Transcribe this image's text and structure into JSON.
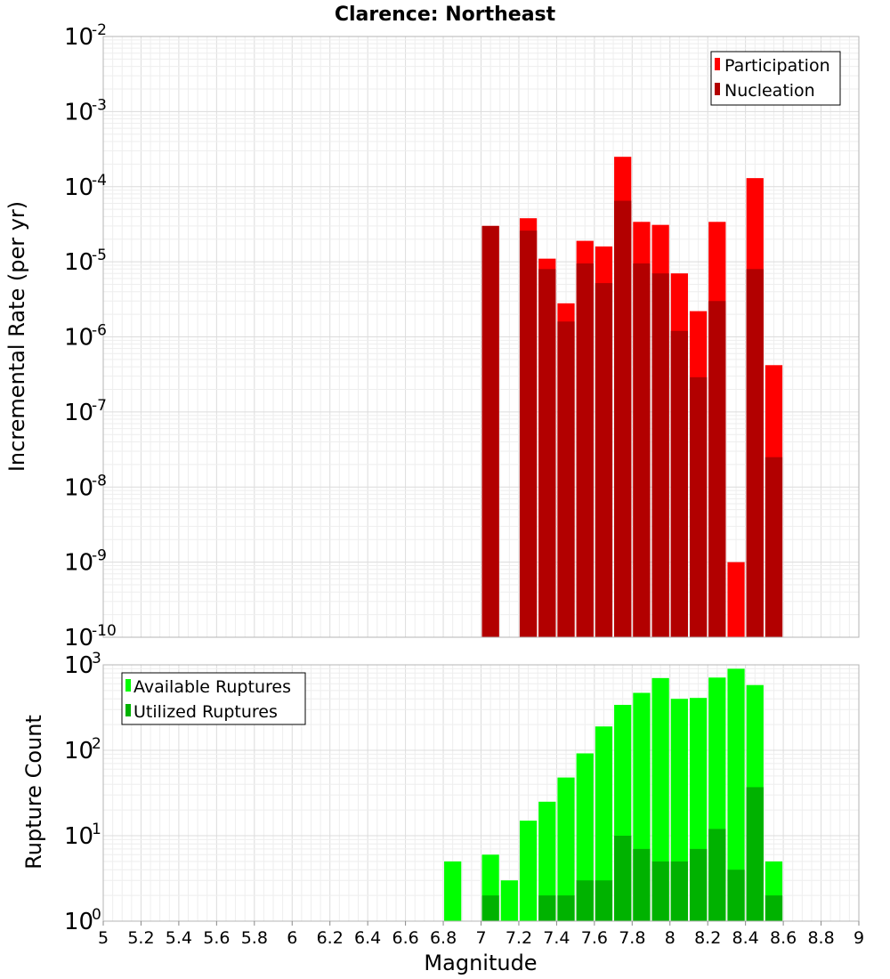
{
  "chart_data": [
    {
      "type": "bar",
      "title": "Clarence: Northeast",
      "xlabel": "Magnitude",
      "ylabel": "Incremental Rate (per yr)",
      "yscale": "log",
      "ylim_exp": [
        -10,
        -2
      ],
      "xlim": [
        5,
        9
      ],
      "bar_width": 0.1,
      "grid": true,
      "legend_placement": "top-right",
      "series": [
        {
          "name": "Participation",
          "color": "#ff0000",
          "points": [
            {
              "x": 7.05,
              "y": 3e-05
            },
            {
              "x": 7.25,
              "y": 3.8e-05
            },
            {
              "x": 7.35,
              "y": 1.1e-05
            },
            {
              "x": 7.45,
              "y": 2.8e-06
            },
            {
              "x": 7.55,
              "y": 1.9e-05
            },
            {
              "x": 7.65,
              "y": 1.6e-05
            },
            {
              "x": 7.75,
              "y": 0.00025
            },
            {
              "x": 7.85,
              "y": 3.4e-05
            },
            {
              "x": 7.95,
              "y": 3.1e-05
            },
            {
              "x": 8.05,
              "y": 7e-06
            },
            {
              "x": 8.15,
              "y": 2.2e-06
            },
            {
              "x": 8.25,
              "y": 3.4e-05
            },
            {
              "x": 8.35,
              "y": 1e-09
            },
            {
              "x": 8.45,
              "y": 0.00013
            },
            {
              "x": 8.55,
              "y": 4.2e-07
            }
          ]
        },
        {
          "name": "Nucleation",
          "color": "#b20000",
          "points": [
            {
              "x": 7.05,
              "y": 3e-05
            },
            {
              "x": 7.25,
              "y": 2.6e-05
            },
            {
              "x": 7.35,
              "y": 8e-06
            },
            {
              "x": 7.45,
              "y": 1.6e-06
            },
            {
              "x": 7.55,
              "y": 9.5e-06
            },
            {
              "x": 7.65,
              "y": 5.2e-06
            },
            {
              "x": 7.75,
              "y": 6.5e-05
            },
            {
              "x": 7.85,
              "y": 9.5e-06
            },
            {
              "x": 7.95,
              "y": 7e-06
            },
            {
              "x": 8.05,
              "y": 1.2e-06
            },
            {
              "x": 8.15,
              "y": 2.9e-07
            },
            {
              "x": 8.25,
              "y": 3e-06
            },
            {
              "x": 8.45,
              "y": 8e-06
            },
            {
              "x": 8.55,
              "y": 2.5e-08
            }
          ]
        }
      ]
    },
    {
      "type": "bar",
      "xlabel": "Magnitude",
      "ylabel": "Rupture Count",
      "yscale": "log",
      "ylim_exp": [
        0,
        3
      ],
      "xlim": [
        5,
        9
      ],
      "x_ticks": [
        "5",
        "5.2",
        "5.4",
        "5.6",
        "5.8",
        "6",
        "6.2",
        "6.4",
        "6.6",
        "6.8",
        "7",
        "7.2",
        "7.4",
        "7.6",
        "7.8",
        "8",
        "8.2",
        "8.4",
        "8.6",
        "8.8",
        "9"
      ],
      "bar_width": 0.1,
      "grid": true,
      "legend_placement": "top-left",
      "series": [
        {
          "name": "Available Ruptures",
          "color": "#00ff00",
          "points": [
            {
              "x": 6.85,
              "y": 5
            },
            {
              "x": 7.05,
              "y": 6
            },
            {
              "x": 7.15,
              "y": 3
            },
            {
              "x": 7.25,
              "y": 15
            },
            {
              "x": 7.35,
              "y": 25
            },
            {
              "x": 7.45,
              "y": 48
            },
            {
              "x": 7.55,
              "y": 92
            },
            {
              "x": 7.65,
              "y": 190
            },
            {
              "x": 7.75,
              "y": 340
            },
            {
              "x": 7.85,
              "y": 470
            },
            {
              "x": 7.95,
              "y": 700
            },
            {
              "x": 8.05,
              "y": 400
            },
            {
              "x": 8.15,
              "y": 410
            },
            {
              "x": 8.25,
              "y": 710
            },
            {
              "x": 8.35,
              "y": 900
            },
            {
              "x": 8.45,
              "y": 580
            },
            {
              "x": 8.55,
              "y": 5
            }
          ]
        },
        {
          "name": "Utilized Ruptures",
          "color": "#00b200",
          "points": [
            {
              "x": 7.05,
              "y": 2
            },
            {
              "x": 7.25,
              "y": 1
            },
            {
              "x": 7.35,
              "y": 2
            },
            {
              "x": 7.45,
              "y": 2
            },
            {
              "x": 7.55,
              "y": 3
            },
            {
              "x": 7.65,
              "y": 3
            },
            {
              "x": 7.75,
              "y": 10
            },
            {
              "x": 7.85,
              "y": 7
            },
            {
              "x": 7.95,
              "y": 5
            },
            {
              "x": 8.05,
              "y": 5
            },
            {
              "x": 8.15,
              "y": 7
            },
            {
              "x": 8.25,
              "y": 12
            },
            {
              "x": 8.35,
              "y": 4
            },
            {
              "x": 8.45,
              "y": 37
            },
            {
              "x": 8.55,
              "y": 2
            }
          ]
        }
      ]
    }
  ]
}
